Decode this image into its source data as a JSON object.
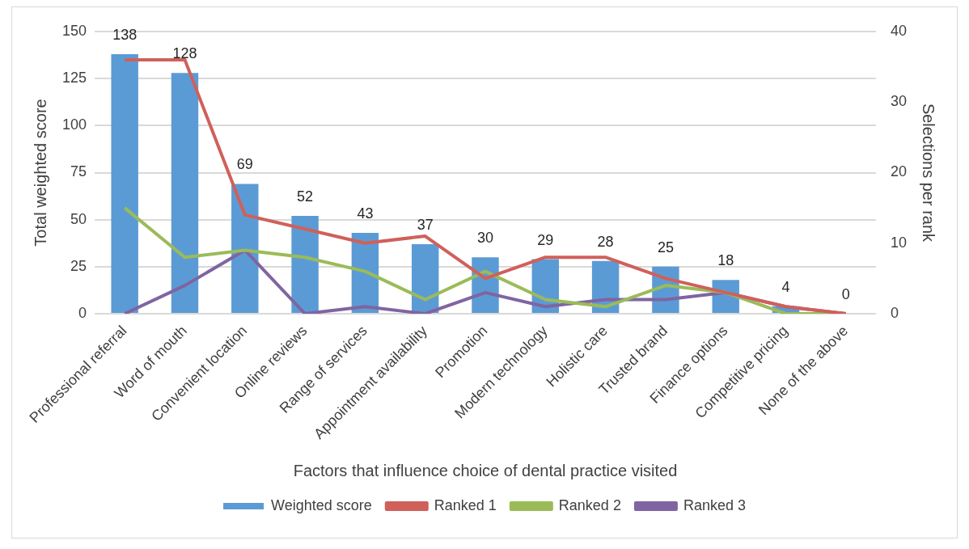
{
  "chart_data": {
    "type": "bar",
    "xlabel": "Factors that influence choice of dental practice visited",
    "ylabel": "Total weighted score",
    "y2label": "Selections per rank",
    "categories": [
      "Professional referral",
      "Word of mouth",
      "Convenient location",
      "Online reviews",
      "Range of services",
      "Appointment availability",
      "Promotion",
      "Modern technology",
      "Holistic care",
      "Trusted brand",
      "Finance options",
      "Competitive pricing",
      "None of the above"
    ],
    "series": [
      {
        "name": "Weighted score",
        "color": "#5b9bd5",
        "values": [
          138,
          128,
          69,
          52,
          43,
          37,
          30,
          29,
          28,
          25,
          18,
          4,
          0
        ],
        "value_labels": [
          "138",
          "128",
          "69",
          "52",
          "43",
          "37",
          "30",
          "29",
          "28",
          "25",
          "18",
          "4",
          "0"
        ]
      },
      {
        "name": "Ranked 1",
        "type": "line",
        "axis": "y2",
        "color": "#d0605a",
        "values": [
          36,
          36,
          14,
          12,
          10,
          11,
          5,
          8,
          8,
          5,
          3,
          1,
          0
        ]
      },
      {
        "name": "Ranked 2",
        "type": "line",
        "axis": "y2",
        "color": "#9bbb59",
        "values": [
          15,
          8,
          9,
          8,
          6,
          2,
          6,
          2,
          1,
          4,
          3,
          0,
          0
        ]
      },
      {
        "name": "Ranked 3",
        "type": "line",
        "axis": "y2",
        "color": "#8064a2",
        "values": [
          0,
          4,
          9,
          0,
          1,
          0,
          3,
          1,
          2,
          2,
          3,
          1,
          0
        ]
      }
    ],
    "ylim": [
      0,
      150
    ],
    "yticks": [
      0,
      25,
      50,
      75,
      100,
      125,
      150
    ],
    "y2lim": [
      0,
      40
    ],
    "y2ticks": [
      0,
      10,
      20,
      30,
      40
    ],
    "grid": "y",
    "legend": "bottom",
    "marker": "none",
    "line_style": "solid"
  }
}
